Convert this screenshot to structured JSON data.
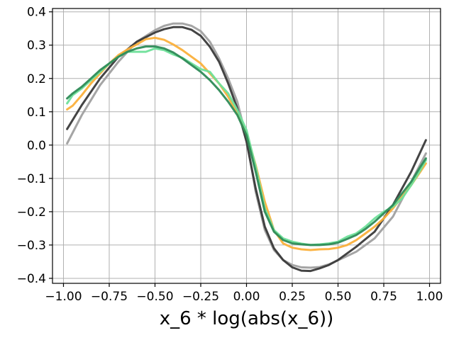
{
  "chart_data": {
    "type": "line",
    "title": "",
    "xlabel": "x_6 * log(abs(x_6))",
    "ylabel": "",
    "xlim": [
      -1.06,
      1.06
    ],
    "ylim": [
      -0.415,
      0.41
    ],
    "grid": true,
    "legend": "none",
    "x_ticks": [
      -1.0,
      -0.75,
      -0.5,
      -0.25,
      0.0,
      0.25,
      0.5,
      0.75,
      1.0
    ],
    "x_tick_labels": [
      "−1.00",
      "−0.75",
      "−0.50",
      "−0.25",
      "0.00",
      "0.25",
      "0.50",
      "0.75",
      "1.00"
    ],
    "y_ticks": [
      -0.4,
      -0.3,
      -0.2,
      -0.1,
      0.0,
      0.1,
      0.2,
      0.3,
      0.4
    ],
    "y_tick_labels": [
      "−0.4",
      "−0.3",
      "−0.2",
      "−0.1",
      "0.0",
      "0.1",
      "0.2",
      "0.3",
      "0.4"
    ],
    "series": [
      {
        "color": "#a0a0a0",
        "x": [
          -0.98,
          -0.9,
          -0.8,
          -0.7,
          -0.6,
          -0.5,
          -0.45,
          -0.4,
          -0.35,
          -0.3,
          -0.25,
          -0.2,
          -0.15,
          -0.1,
          -0.05,
          0.0,
          0.05,
          0.1,
          0.15,
          0.2,
          0.25,
          0.3,
          0.35,
          0.4,
          0.45,
          0.5,
          0.6,
          0.7,
          0.8,
          0.9,
          0.98
        ],
        "y": [
          0.005,
          0.09,
          0.18,
          0.25,
          0.31,
          0.345,
          0.358,
          0.365,
          0.365,
          0.358,
          0.342,
          0.31,
          0.26,
          0.2,
          0.13,
          0.02,
          -0.14,
          -0.255,
          -0.315,
          -0.345,
          -0.36,
          -0.367,
          -0.368,
          -0.366,
          -0.358,
          -0.346,
          -0.32,
          -0.28,
          -0.215,
          -0.11,
          -0.025
        ]
      },
      {
        "color": "#3a3a3a",
        "x": [
          -0.98,
          -0.9,
          -0.8,
          -0.7,
          -0.6,
          -0.5,
          -0.45,
          -0.4,
          -0.35,
          -0.3,
          -0.25,
          -0.2,
          -0.15,
          -0.1,
          -0.05,
          0.0,
          0.05,
          0.1,
          0.15,
          0.2,
          0.25,
          0.3,
          0.35,
          0.4,
          0.45,
          0.5,
          0.6,
          0.7,
          0.8,
          0.9,
          0.98
        ],
        "y": [
          0.048,
          0.12,
          0.2,
          0.265,
          0.31,
          0.338,
          0.348,
          0.354,
          0.354,
          0.346,
          0.328,
          0.295,
          0.25,
          0.185,
          0.11,
          0.01,
          -0.13,
          -0.245,
          -0.31,
          -0.345,
          -0.367,
          -0.377,
          -0.378,
          -0.37,
          -0.36,
          -0.345,
          -0.305,
          -0.26,
          -0.18,
          -0.08,
          0.015
        ]
      },
      {
        "color": "#fbb03b",
        "x": [
          -0.98,
          -0.95,
          -0.9,
          -0.85,
          -0.8,
          -0.75,
          -0.7,
          -0.65,
          -0.6,
          -0.55,
          -0.5,
          -0.45,
          -0.4,
          -0.35,
          -0.3,
          -0.25,
          -0.2,
          -0.15,
          -0.1,
          -0.05,
          0.0,
          0.05,
          0.1,
          0.15,
          0.2,
          0.25,
          0.3,
          0.35,
          0.4,
          0.45,
          0.5,
          0.55,
          0.6,
          0.65,
          0.7,
          0.75,
          0.8,
          0.85,
          0.9,
          0.95,
          0.98
        ],
        "y": [
          0.107,
          0.118,
          0.15,
          0.185,
          0.215,
          0.245,
          0.27,
          0.287,
          0.302,
          0.318,
          0.322,
          0.316,
          0.302,
          0.285,
          0.265,
          0.245,
          0.215,
          0.185,
          0.145,
          0.095,
          0.035,
          -0.06,
          -0.17,
          -0.255,
          -0.295,
          -0.308,
          -0.313,
          -0.315,
          -0.313,
          -0.312,
          -0.308,
          -0.3,
          -0.285,
          -0.265,
          -0.245,
          -0.22,
          -0.19,
          -0.155,
          -0.12,
          -0.08,
          -0.055
        ]
      },
      {
        "color": "#6fe09a",
        "x": [
          -0.98,
          -0.95,
          -0.9,
          -0.85,
          -0.8,
          -0.75,
          -0.7,
          -0.65,
          -0.6,
          -0.55,
          -0.5,
          -0.45,
          -0.4,
          -0.35,
          -0.3,
          -0.25,
          -0.2,
          -0.15,
          -0.1,
          -0.05,
          0.0,
          0.05,
          0.1,
          0.15,
          0.2,
          0.25,
          0.3,
          0.35,
          0.4,
          0.45,
          0.5,
          0.55,
          0.6,
          0.65,
          0.7,
          0.75,
          0.8,
          0.85,
          0.9,
          0.95,
          0.98
        ],
        "y": [
          0.125,
          0.15,
          0.17,
          0.195,
          0.22,
          0.245,
          0.265,
          0.28,
          0.28,
          0.28,
          0.29,
          0.285,
          0.272,
          0.262,
          0.245,
          0.228,
          0.22,
          0.185,
          0.155,
          0.105,
          0.045,
          -0.065,
          -0.19,
          -0.255,
          -0.28,
          -0.29,
          -0.296,
          -0.3,
          -0.298,
          -0.295,
          -0.29,
          -0.275,
          -0.265,
          -0.245,
          -0.22,
          -0.2,
          -0.185,
          -0.16,
          -0.12,
          -0.075,
          -0.045
        ]
      },
      {
        "color": "#2e8b57",
        "x": [
          -0.98,
          -0.95,
          -0.9,
          -0.85,
          -0.8,
          -0.75,
          -0.7,
          -0.65,
          -0.6,
          -0.55,
          -0.5,
          -0.45,
          -0.4,
          -0.35,
          -0.3,
          -0.25,
          -0.2,
          -0.15,
          -0.1,
          -0.05,
          0.0,
          0.05,
          0.1,
          0.15,
          0.2,
          0.25,
          0.3,
          0.35,
          0.4,
          0.45,
          0.5,
          0.55,
          0.6,
          0.65,
          0.7,
          0.75,
          0.8,
          0.85,
          0.9,
          0.95,
          0.98
        ],
        "y": [
          0.14,
          0.155,
          0.175,
          0.2,
          0.225,
          0.245,
          0.265,
          0.28,
          0.29,
          0.296,
          0.296,
          0.29,
          0.278,
          0.26,
          0.24,
          0.22,
          0.195,
          0.165,
          0.13,
          0.09,
          0.03,
          -0.08,
          -0.2,
          -0.26,
          -0.285,
          -0.295,
          -0.298,
          -0.3,
          -0.3,
          -0.298,
          -0.293,
          -0.282,
          -0.27,
          -0.252,
          -0.23,
          -0.205,
          -0.18,
          -0.145,
          -0.11,
          -0.065,
          -0.04
        ]
      }
    ]
  }
}
